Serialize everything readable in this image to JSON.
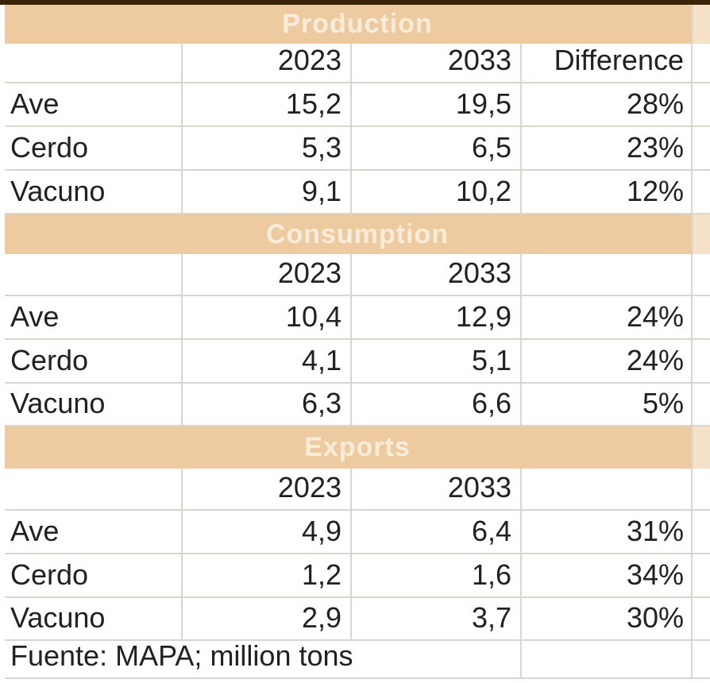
{
  "colors": {
    "band_background": "#eecaa0",
    "band_text": "#f8edda",
    "top_bar": "#3a2408",
    "gridline": "#d9d5cf",
    "data_text": "#212121"
  },
  "chart_data": {
    "type": "table",
    "title": "",
    "units": "million tons",
    "decimal_separator": ",",
    "sections": [
      {
        "title": "Production",
        "columns": [
          "",
          "2023",
          "2033",
          "Difference"
        ],
        "rows": [
          [
            "Ave",
            "15,2",
            "19,5",
            "28%"
          ],
          [
            "Cerdo",
            "5,3",
            "6,5",
            "23%"
          ],
          [
            "Vacuno",
            "9,1",
            "10,2",
            "12%"
          ]
        ]
      },
      {
        "title": "Consumption",
        "columns": [
          "",
          "2023",
          "2033",
          ""
        ],
        "rows": [
          [
            "Ave",
            "10,4",
            "12,9",
            "24%"
          ],
          [
            "Cerdo",
            "4,1",
            "5,1",
            "24%"
          ],
          [
            "Vacuno",
            "6,3",
            "6,6",
            "5%"
          ]
        ]
      },
      {
        "title": "Exports",
        "columns": [
          "",
          "2023",
          "2033",
          ""
        ],
        "rows": [
          [
            "Ave",
            "4,9",
            "6,4",
            "31%"
          ],
          [
            "Cerdo",
            "1,2",
            "1,6",
            "34%"
          ],
          [
            "Vacuno",
            "2,9",
            "3,7",
            "30%"
          ]
        ]
      }
    ],
    "footer": "Fuente: MAPA; million tons"
  }
}
